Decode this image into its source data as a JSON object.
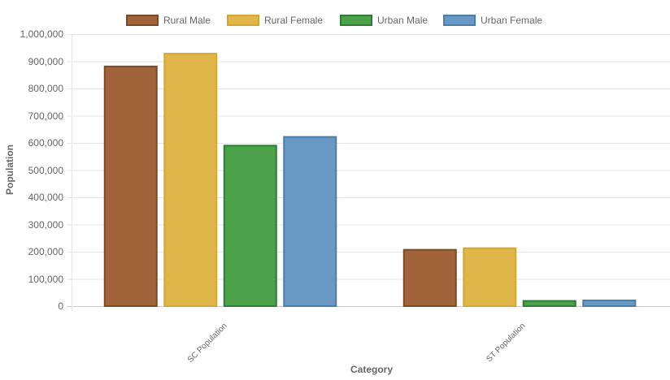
{
  "chart_data": {
    "type": "bar",
    "title": "",
    "xlabel": "Category",
    "ylabel": "Population",
    "ylim": [
      0,
      1000000
    ],
    "yticks": [
      "0",
      "100,000",
      "200,000",
      "300,000",
      "400,000",
      "500,000",
      "600,000",
      "700,000",
      "800,000",
      "900,000",
      "1,000,000"
    ],
    "grid": true,
    "legend_position": "top",
    "categories": [
      "SC Population",
      "ST Population"
    ],
    "series": [
      {
        "name": "Rural Male",
        "fill": "#a0633a",
        "border": "#7b4a23",
        "values": [
          884000,
          210000
        ]
      },
      {
        "name": "Rural Female",
        "fill": "#e0b54a",
        "border": "#d4a830",
        "values": [
          931000,
          216000
        ]
      },
      {
        "name": "Urban Male",
        "fill": "#4ba24b",
        "border": "#2e7d32",
        "values": [
          593000,
          22000
        ]
      },
      {
        "name": "Urban Female",
        "fill": "#6899c4",
        "border": "#4a7ea8",
        "values": [
          625000,
          24000
        ]
      }
    ]
  },
  "legend": {
    "items": [
      "Rural Male",
      "Rural Female",
      "Urban Male",
      "Urban Female"
    ]
  },
  "axes": {
    "x_title": "Category",
    "y_title": "Population",
    "x_ticks": [
      "SC Population",
      "ST Population"
    ]
  }
}
